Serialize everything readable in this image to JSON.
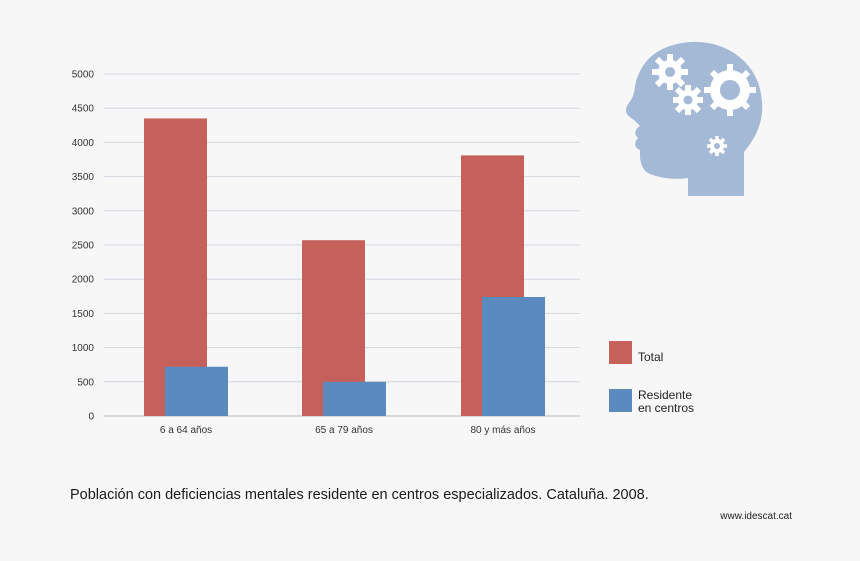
{
  "chart_data": {
    "type": "bar",
    "categories": [
      "6 a 64 años",
      "65 a 79 años",
      "80 y más años"
    ],
    "series": [
      {
        "name": "Total",
        "values": [
          4350,
          2570,
          3810
        ],
        "color": "#c5605a"
      },
      {
        "name": "Residente en centros",
        "values": [
          720,
          500,
          1740
        ],
        "color": "#5b8abf"
      }
    ],
    "y_ticks": [
      "0",
      "500",
      "1000",
      "1500",
      "2000",
      "2500",
      "3000",
      "3500",
      "4000",
      "4500",
      "5000"
    ],
    "ylim": [
      0,
      5000
    ],
    "grid": true,
    "legend_position": "right",
    "title": "Población con deficiencias mentales residente en centros especializados. Cataluña. 2008."
  },
  "legend": {
    "total_label": "Total",
    "resident_line1": "Residente",
    "resident_line2": "en centros"
  },
  "source": "www.idescat.cat",
  "illustration": {
    "icon": "head-with-gears-icon",
    "color": "#a3b9d6"
  }
}
